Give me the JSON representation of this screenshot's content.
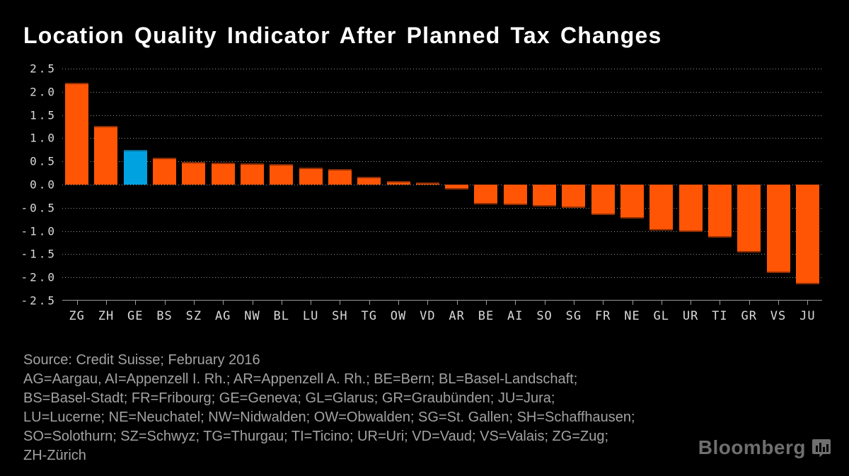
{
  "title": "Location Quality Indicator After Planned Tax Changes",
  "chart_data": {
    "type": "bar",
    "title": "Location Quality Indicator After Planned Tax Changes",
    "categories": [
      "ZG",
      "ZH",
      "GE",
      "BS",
      "SZ",
      "AG",
      "NW",
      "BL",
      "LU",
      "SH",
      "TG",
      "OW",
      "VD",
      "AR",
      "BE",
      "AI",
      "SO",
      "SG",
      "FR",
      "NE",
      "GL",
      "UR",
      "TI",
      "GR",
      "VS",
      "JU"
    ],
    "values": [
      2.2,
      1.26,
      0.75,
      0.58,
      0.49,
      0.48,
      0.46,
      0.44,
      0.36,
      0.33,
      0.17,
      0.08,
      0.04,
      -0.1,
      -0.42,
      -0.44,
      -0.48,
      -0.51,
      -0.65,
      -0.73,
      -0.99,
      -1.02,
      -1.15,
      -1.47,
      -1.91,
      -2.15
    ],
    "highlighted_category": "GE",
    "ylim": [
      -2.5,
      2.5
    ],
    "ytick_step": 0.5,
    "y_ticks": [
      "2.5",
      "2.0",
      "1.5",
      "1.0",
      "0.5",
      "0.0",
      "-0.5",
      "-1.0",
      "-1.5",
      "-2.0",
      "-2.5"
    ],
    "xlabel": "",
    "ylabel": "",
    "grid": "horizontal-dotted",
    "legend_position": "none"
  },
  "colors": {
    "background": "#000000",
    "title_text": "#FFFFFF",
    "axis_text": "#D9D9D9",
    "footer_text": "#A2A2A2",
    "grid_dots": "#8F8F8F",
    "axis_line": "#9A9A9A",
    "bar_orange": "#FF5505",
    "bar_blue": "#00A3E0",
    "bar_edge": "#8A2D05",
    "highlight_edge": "#0B6E94",
    "logo_gray": "#6F6F6F"
  },
  "footer": {
    "lines": [
      "Source: Credit Suisse; February 2016",
      "AG=Aargau, AI=Appenzell I. Rh.; AR=Appenzell A. Rh.; BE=Bern; BL=Basel-Landschaft;",
      "BS=Basel-Stadt; FR=Fribourg; GE=Geneva; GL=Glarus; GR=Graubünden; JU=Jura;",
      "LU=Lucerne; NE=Neuchatel; NW=Nidwalden; OW=Obwalden; SG=St. Gallen; SH=Schaffhausen;",
      "SO=Solothurn; SZ=Schwyz; TG=Thurgau; TI=Ticino; UR=Uri; VD=Vaud; VS=Valais; ZG=Zug;",
      "ZH-Zürich"
    ]
  },
  "branding": {
    "logo_text": "Bloomberg",
    "logo_icon": "chart-speech-bubble-icon"
  }
}
